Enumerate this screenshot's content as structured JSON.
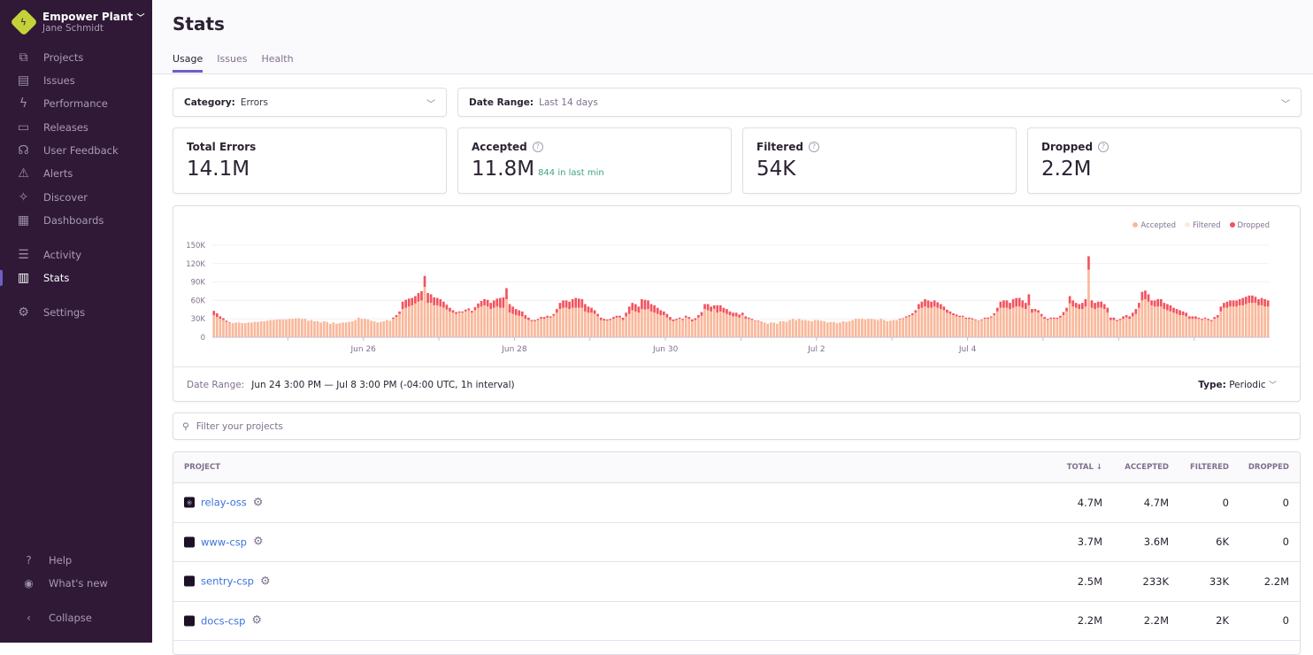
{
  "sidebar": {
    "org_name": "Empower Plant",
    "user": "Jane Schmidt",
    "items": [
      {
        "label": "Projects",
        "icon": "projects-icon",
        "glyph": "⧉"
      },
      {
        "label": "Issues",
        "icon": "issues-icon",
        "glyph": "▤"
      },
      {
        "label": "Performance",
        "icon": "performance-icon",
        "glyph": "ϟ"
      },
      {
        "label": "Releases",
        "icon": "releases-icon",
        "glyph": "▭"
      },
      {
        "label": "User Feedback",
        "icon": "feedback-icon",
        "glyph": "☊"
      },
      {
        "label": "Alerts",
        "icon": "alerts-icon",
        "glyph": "⚠"
      },
      {
        "label": "Discover",
        "icon": "discover-icon",
        "glyph": "✧"
      },
      {
        "label": "Dashboards",
        "icon": "dashboards-icon",
        "glyph": "▦"
      },
      {
        "label": "Activity",
        "icon": "activity-icon",
        "glyph": "☰"
      },
      {
        "label": "Stats",
        "icon": "stats-icon",
        "glyph": "▥",
        "active": true
      },
      {
        "label": "Settings",
        "icon": "settings-icon",
        "glyph": "⚙"
      }
    ],
    "footer": [
      {
        "label": "Help",
        "icon": "help-icon",
        "glyph": "?"
      },
      {
        "label": "What's new",
        "icon": "broadcast-icon",
        "glyph": "◉"
      },
      {
        "label": "Collapse",
        "icon": "collapse-icon",
        "glyph": "‹"
      }
    ]
  },
  "page": {
    "title": "Stats",
    "tabs": [
      "Usage",
      "Issues",
      "Health"
    ],
    "active_tab": "Usage"
  },
  "filters": {
    "category_label": "Category:",
    "category_value": "Errors",
    "date_label": "Date Range:",
    "date_value": "Last 14 days"
  },
  "cards": [
    {
      "label": "Total Errors",
      "value": "14.1M"
    },
    {
      "label": "Accepted",
      "value": "11.8M",
      "sub": "844 in last min"
    },
    {
      "label": "Filtered",
      "value": "54K"
    },
    {
      "label": "Dropped",
      "value": "2.2M"
    }
  ],
  "chart_footer": {
    "label": "Date Range:",
    "value": "Jun 24 3:00 PM — Jul 8 3:00 PM (-04:00 UTC, 1h interval)",
    "type_label": "Type:",
    "type_value": "Periodic"
  },
  "search": {
    "placeholder": "Filter your projects"
  },
  "table": {
    "headers": [
      "PROJECT",
      "TOTAL ↓",
      "ACCEPTED",
      "FILTERED",
      "DROPPED"
    ],
    "rows": [
      {
        "project": "relay-oss",
        "total": "4.7M",
        "accepted": "4.7M",
        "filtered": "0",
        "dropped": "0"
      },
      {
        "project": "www-csp",
        "total": "3.7M",
        "accepted": "3.6M",
        "filtered": "6K",
        "dropped": "0"
      },
      {
        "project": "sentry-csp",
        "total": "2.5M",
        "accepted": "233K",
        "filtered": "33K",
        "dropped": "2.2M"
      },
      {
        "project": "docs-csp",
        "total": "2.2M",
        "accepted": "2.2M",
        "filtered": "2K",
        "dropped": "0"
      }
    ]
  },
  "chart_data": {
    "type": "bar",
    "stacked": true,
    "interval": "1h",
    "ylim": [
      0,
      150000
    ],
    "yticks": [
      "0",
      "30K",
      "60K",
      "90K",
      "120K",
      "150K"
    ],
    "xtick_labels": [
      "Jun 26",
      "Jun 28",
      "Jun 30",
      "Jul 2",
      "Jul 4"
    ],
    "legend": [
      "Accepted",
      "Filtered",
      "Dropped"
    ],
    "legend_placement": "top-right",
    "colors": {
      "accepted": "#f9b89b",
      "filtered": "#fbe9e5",
      "dropped": "#f2535e"
    },
    "units": "K",
    "accepted": [
      36,
      33,
      30,
      28,
      25,
      23,
      23,
      24,
      24,
      23,
      23,
      24,
      24,
      25,
      25,
      26,
      26,
      27,
      28,
      28,
      29,
      29,
      29,
      29,
      30,
      30,
      31,
      31,
      30,
      30,
      27,
      28,
      26,
      26,
      24,
      26,
      25,
      22,
      24,
      22,
      23,
      24,
      24,
      25,
      26,
      28,
      32,
      30,
      30,
      29,
      27,
      26,
      24,
      25,
      26,
      28,
      27,
      30,
      33,
      38,
      46,
      48,
      50,
      52,
      55,
      58,
      60,
      82,
      56,
      56,
      52,
      52,
      50,
      48,
      45,
      42,
      40,
      38,
      40,
      40,
      42,
      44,
      40,
      44,
      48,
      50,
      52,
      50,
      46,
      48,
      50,
      48,
      48,
      62,
      40,
      38,
      36,
      35,
      34,
      30,
      28,
      26,
      26,
      28,
      30,
      30,
      32,
      32,
      35,
      40,
      46,
      48,
      48,
      46,
      48,
      48,
      48,
      48,
      42,
      40,
      40,
      38,
      34,
      28,
      27,
      27,
      28,
      30,
      32,
      32,
      28,
      34,
      38,
      44,
      42,
      40,
      46,
      45,
      46,
      42,
      40,
      38,
      36,
      36,
      32,
      28,
      26,
      28,
      30,
      28,
      32,
      30,
      26,
      28,
      32,
      35,
      46,
      44,
      42,
      46,
      40,
      42,
      40,
      38,
      36,
      34,
      34,
      32,
      36,
      30,
      30,
      28,
      26,
      26,
      24,
      24,
      22,
      24,
      24,
      22,
      26,
      26,
      25,
      28,
      30,
      28,
      30,
      28,
      28,
      27,
      26,
      28,
      28,
      27,
      26,
      24,
      25,
      25,
      23,
      24,
      26,
      25,
      26,
      28,
      30,
      30,
      30,
      29,
      30,
      30,
      29,
      28,
      30,
      28,
      26,
      27,
      28,
      28,
      29,
      30,
      32,
      34,
      36,
      40,
      46,
      48,
      50,
      48,
      48,
      50,
      48,
      46,
      44,
      40,
      38,
      36,
      34,
      33,
      33,
      30,
      30,
      29,
      28,
      26,
      28,
      30,
      30,
      32,
      36,
      42,
      48,
      48,
      48,
      46,
      48,
      50,
      50,
      48,
      46,
      52,
      40,
      42,
      40,
      34,
      30,
      28,
      30,
      30,
      30,
      32,
      36,
      42,
      55,
      50,
      48,
      46,
      46,
      50,
      110,
      48,
      46,
      48,
      48,
      46,
      40,
      28,
      28,
      26,
      28,
      30,
      32,
      30,
      34,
      38,
      48,
      60,
      62,
      58,
      52,
      50,
      50,
      50,
      46,
      44,
      42,
      40,
      38,
      36,
      36,
      34,
      30,
      30,
      30,
      30,
      28,
      30,
      28,
      26,
      30,
      32,
      42,
      48,
      48,
      50,
      50,
      50,
      52,
      52,
      54,
      56,
      56,
      56,
      52,
      52,
      50,
      50
    ],
    "dropped": [
      7,
      6,
      4,
      3,
      2,
      1,
      0,
      0,
      0,
      0,
      0,
      0,
      0,
      0,
      0,
      0,
      0,
      0,
      0,
      0,
      0,
      0,
      0,
      0,
      0,
      0,
      0,
      0,
      0,
      0,
      0,
      0,
      0,
      0,
      0,
      0,
      0,
      0,
      0,
      0,
      0,
      0,
      0,
      0,
      0,
      0,
      0,
      0,
      0,
      0,
      0,
      0,
      0,
      0,
      0,
      0,
      0,
      2,
      3,
      4,
      12,
      13,
      13,
      12,
      12,
      14,
      15,
      18,
      16,
      14,
      13,
      12,
      12,
      10,
      8,
      6,
      4,
      3,
      2,
      2,
      3,
      3,
      3,
      5,
      7,
      9,
      10,
      11,
      10,
      12,
      13,
      16,
      17,
      18,
      14,
      12,
      10,
      9,
      8,
      6,
      4,
      2,
      2,
      2,
      3,
      3,
      3,
      2,
      3,
      6,
      10,
      12,
      12,
      12,
      14,
      16,
      15,
      14,
      12,
      10,
      8,
      6,
      4,
      4,
      3,
      2,
      2,
      3,
      3,
      3,
      4,
      6,
      12,
      12,
      12,
      10,
      16,
      16,
      14,
      12,
      12,
      10,
      8,
      6,
      6,
      5,
      3,
      2,
      2,
      2,
      3,
      3,
      3,
      3,
      4,
      6,
      8,
      10,
      8,
      6,
      12,
      10,
      8,
      8,
      6,
      6,
      6,
      5,
      4,
      4,
      2,
      2,
      1,
      1,
      1,
      0,
      0,
      0,
      0,
      0,
      0,
      0,
      0,
      0,
      0,
      0,
      0,
      0,
      0,
      0,
      0,
      0,
      0,
      0,
      0,
      0,
      0,
      0,
      0,
      0,
      0,
      0,
      0,
      0,
      0,
      0,
      0,
      0,
      0,
      0,
      0,
      0,
      0,
      0,
      0,
      0,
      0,
      0,
      1,
      1,
      2,
      2,
      3,
      4,
      8,
      10,
      12,
      12,
      10,
      10,
      9,
      8,
      6,
      5,
      4,
      3,
      3,
      2,
      2,
      2,
      2,
      2,
      1,
      1,
      1,
      2,
      2,
      2,
      3,
      6,
      10,
      12,
      12,
      10,
      14,
      14,
      14,
      12,
      10,
      18,
      6,
      4,
      4,
      4,
      3,
      2,
      2,
      2,
      2,
      3,
      5,
      6,
      12,
      10,
      8,
      8,
      10,
      12,
      22,
      12,
      10,
      10,
      10,
      8,
      8,
      4,
      4,
      2,
      2,
      4,
      4,
      4,
      6,
      8,
      8,
      14,
      14,
      12,
      8,
      10,
      12,
      12,
      10,
      10,
      10,
      8,
      8,
      8,
      6,
      6,
      4,
      4,
      4,
      2,
      2,
      2,
      2,
      2,
      3,
      4,
      8,
      8,
      10,
      10,
      10,
      10,
      10,
      12,
      12,
      12,
      12,
      10,
      10,
      12,
      12,
      10
    ]
  }
}
